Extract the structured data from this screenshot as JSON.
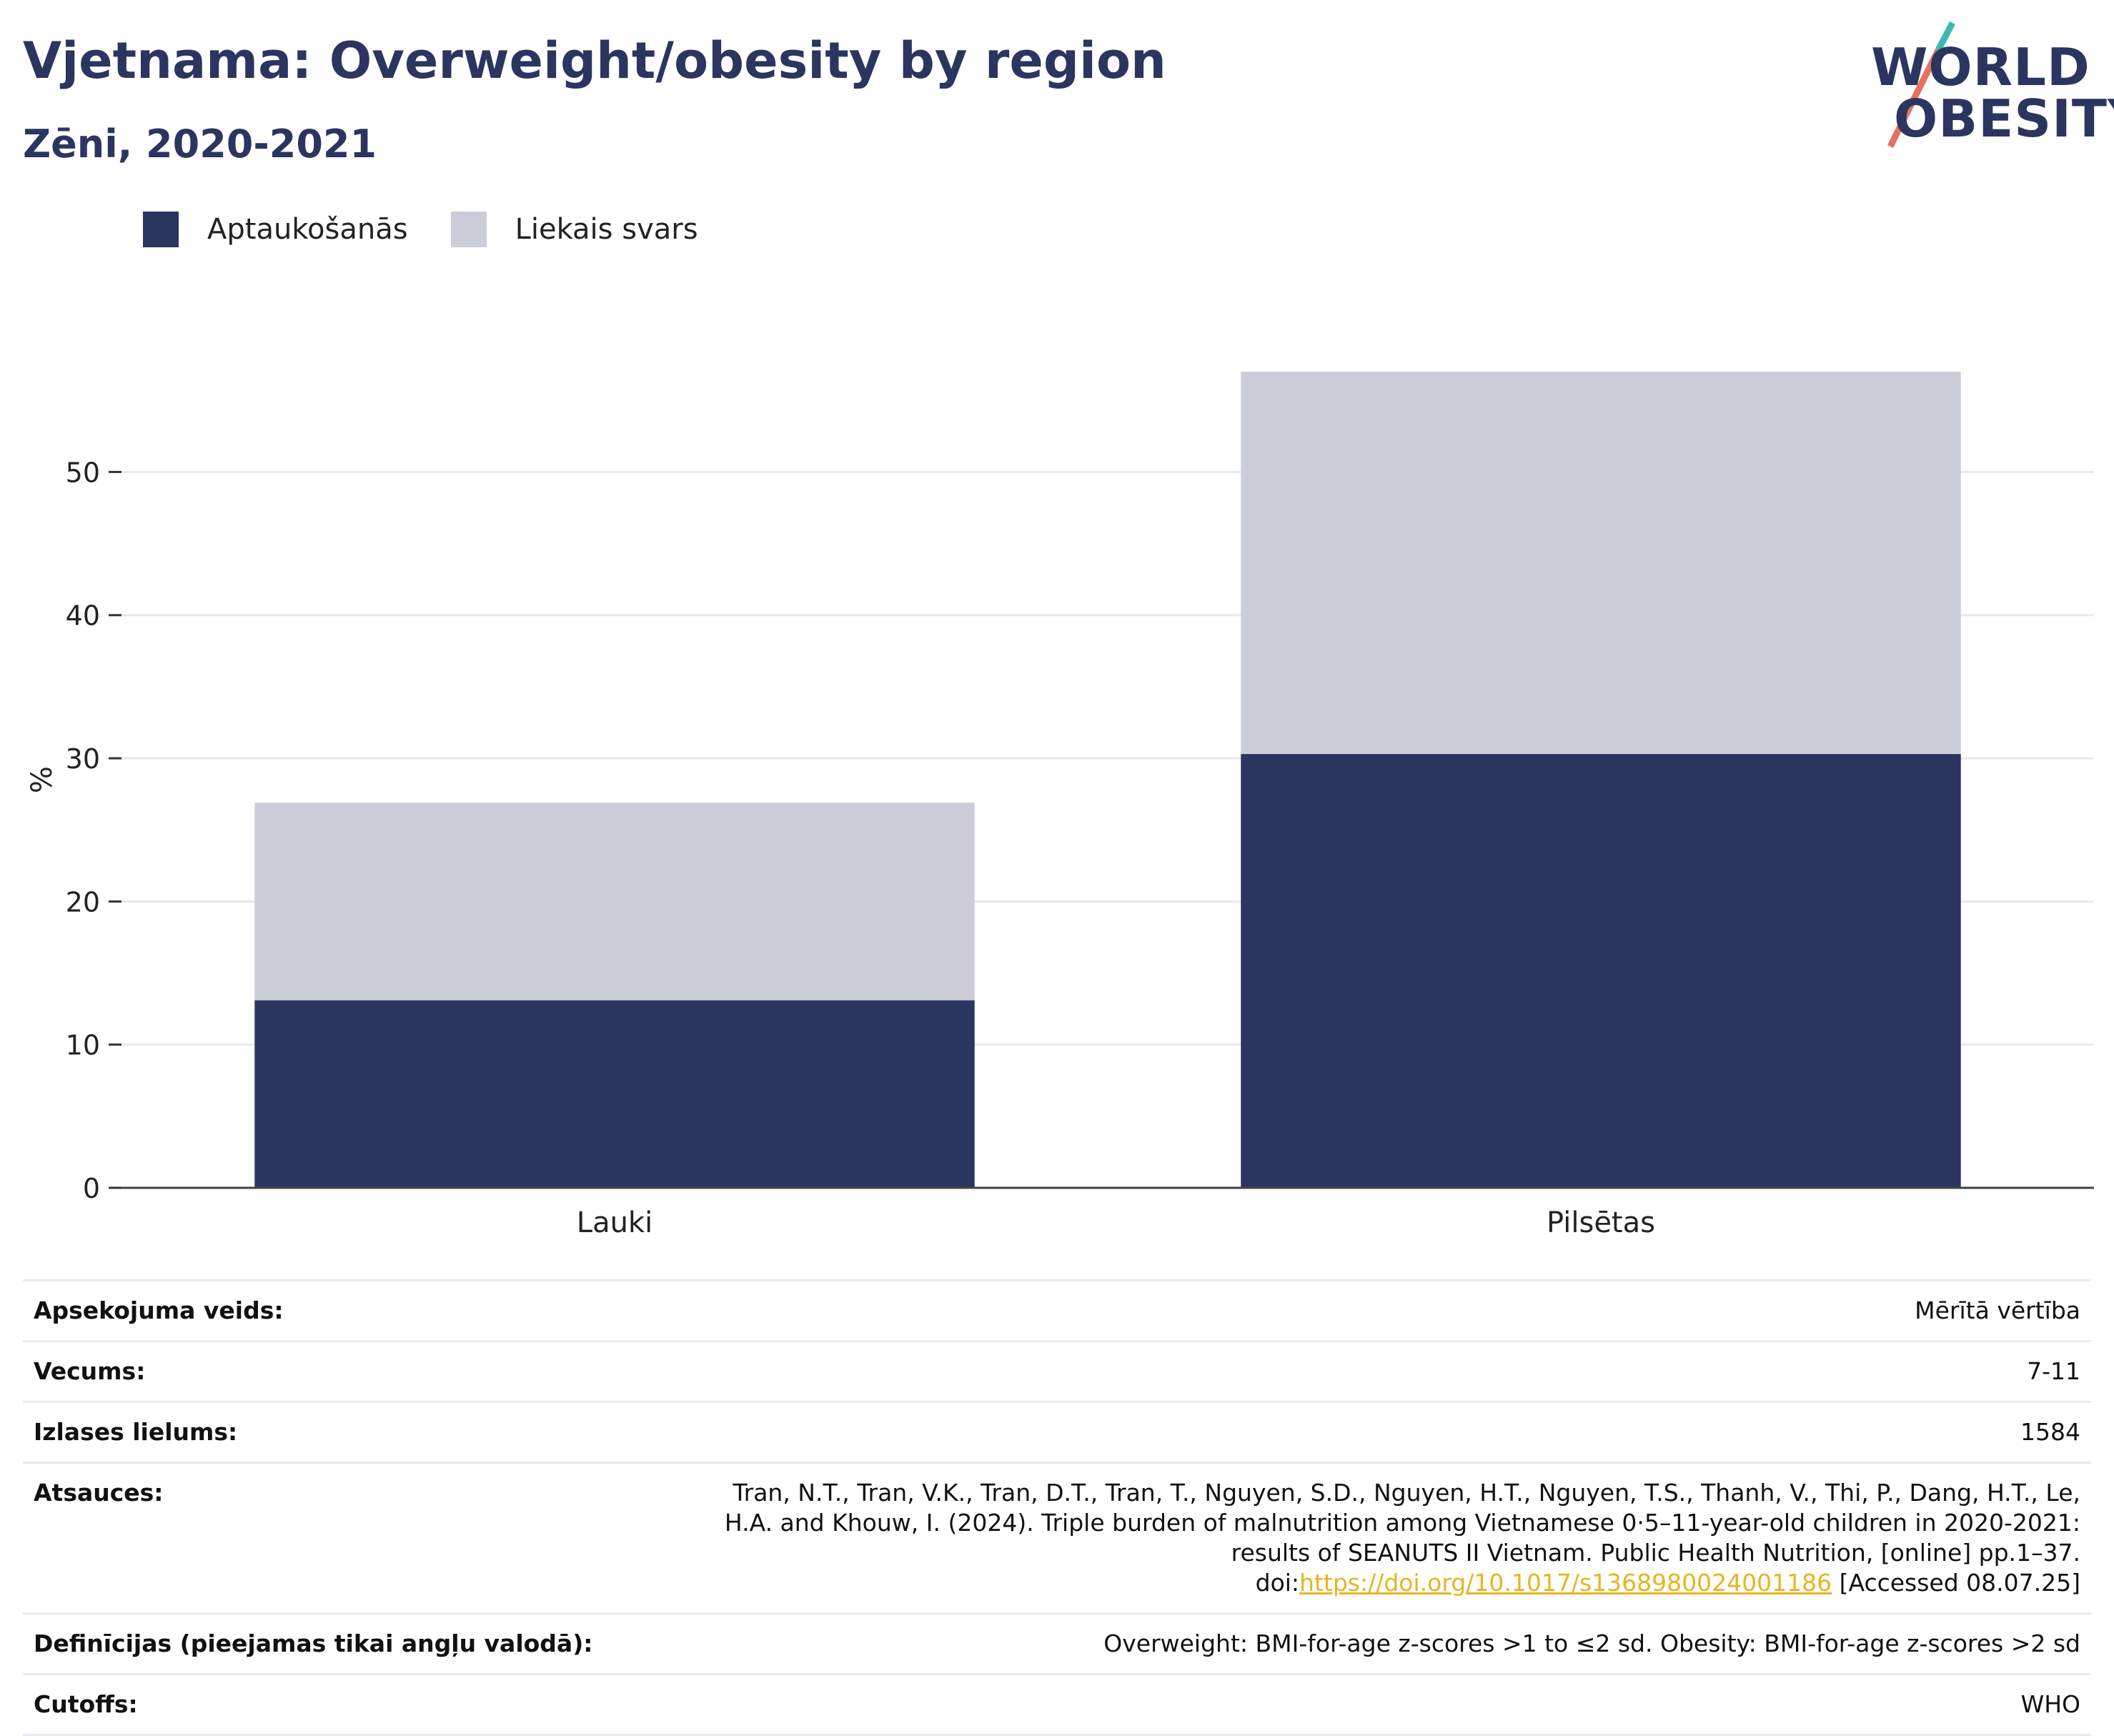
{
  "header": {
    "title": "Vjetnama: Overweight/obesity by region",
    "subtitle": "Zēni, 2020-2021"
  },
  "logo": {
    "line1": "WORLD",
    "line2": "OBESITY"
  },
  "colors": {
    "obesity": "#2a365f",
    "overweight": "#cbcdd8",
    "text": "#2a365f",
    "link": "#e6b522"
  },
  "chart_data": {
    "type": "bar",
    "stacked": true,
    "categories": [
      "Lauki",
      "Pilsētas"
    ],
    "series": [
      {
        "name": "Aptaukošanās",
        "values": [
          13.1,
          30.3
        ],
        "color": "#2a365f"
      },
      {
        "name": "Liekais svars",
        "values": [
          13.8,
          26.7
        ],
        "color": "#cbcdd8"
      }
    ],
    "ylabel": "%",
    "ylim": [
      0,
      62
    ],
    "yticks": [
      0,
      10,
      20,
      30,
      40,
      50
    ],
    "grid": true,
    "legend": "top-left"
  },
  "info": {
    "rows": [
      {
        "key": "Apsekojuma veids:",
        "value": "Mērītā vērtība"
      },
      {
        "key": "Vecums:",
        "value": "7-11"
      },
      {
        "key": "Izlases lielums:",
        "value": "1584"
      },
      {
        "key": "Definīcijas (pieejamas tikai angļu valodā):",
        "value": "Overweight: BMI-for-age z-scores >1 to ≤2 sd. Obesity: BMI-for-age z-scores >2 sd"
      },
      {
        "key": "Cutoffs:",
        "value": "WHO"
      }
    ],
    "reference": {
      "key": "Atsauces:",
      "text_before": "Tran, N.T., Tran, V.K., Tran, D.T., Tran, T., Nguyen, S.D., Nguyen, H.T., Nguyen, T.S., Thanh, V., Thi, P., Dang, H.T., Le, H.A. and Khouw, I. (2024). Triple burden of malnutrition among Vietnamese 0·5–11-year-old children in 2020-2021: results of SEANUTS II Vietnam. Public Health Nutrition, [online] pp.1–37. doi:",
      "link": "https://doi.org/10.1017/s1368980024001186",
      "text_after": " [Accessed 08.07.25]"
    }
  }
}
